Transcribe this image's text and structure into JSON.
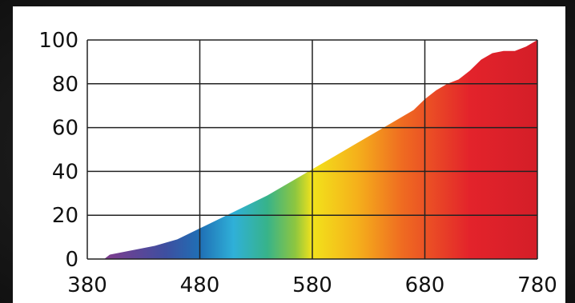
{
  "chart_data": {
    "type": "area",
    "title": "",
    "xlabel": "",
    "ylabel": "",
    "xlim": [
      380,
      780
    ],
    "ylim": [
      0,
      100
    ],
    "x_ticks": [
      "380",
      "480",
      "580",
      "680",
      "780"
    ],
    "y_ticks": [
      "100",
      "80",
      "60",
      "40",
      "20",
      "0"
    ],
    "grid": true,
    "series": [
      {
        "x": [
          380,
          395,
          400,
          420,
          440,
          460,
          480,
          500,
          520,
          540,
          560,
          580,
          600,
          620,
          640,
          660,
          670,
          680,
          690,
          700,
          710,
          720,
          730,
          740,
          750,
          760,
          770,
          780
        ],
        "values": [
          0,
          0,
          2,
          4,
          6,
          9,
          14,
          19,
          24,
          29,
          35,
          41,
          47,
          53,
          59,
          65,
          68,
          73,
          77,
          80,
          82,
          86,
          91,
          94,
          95,
          95,
          97,
          100
        ]
      }
    ],
    "fill_colors": [
      {
        "wavelength": 400,
        "color": "#7a3d8f"
      },
      {
        "wavelength": 450,
        "color": "#3d4fa0"
      },
      {
        "wavelength": 480,
        "color": "#1f6fb5"
      },
      {
        "wavelength": 510,
        "color": "#2fb0d8"
      },
      {
        "wavelength": 540,
        "color": "#37b38a"
      },
      {
        "wavelength": 565,
        "color": "#8ec63f"
      },
      {
        "wavelength": 580,
        "color": "#f2e21b"
      },
      {
        "wavelength": 620,
        "color": "#f5b01b"
      },
      {
        "wavelength": 660,
        "color": "#ef6b21"
      },
      {
        "wavelength": 720,
        "color": "#e3232b"
      },
      {
        "wavelength": 780,
        "color": "#d41e28"
      }
    ]
  }
}
